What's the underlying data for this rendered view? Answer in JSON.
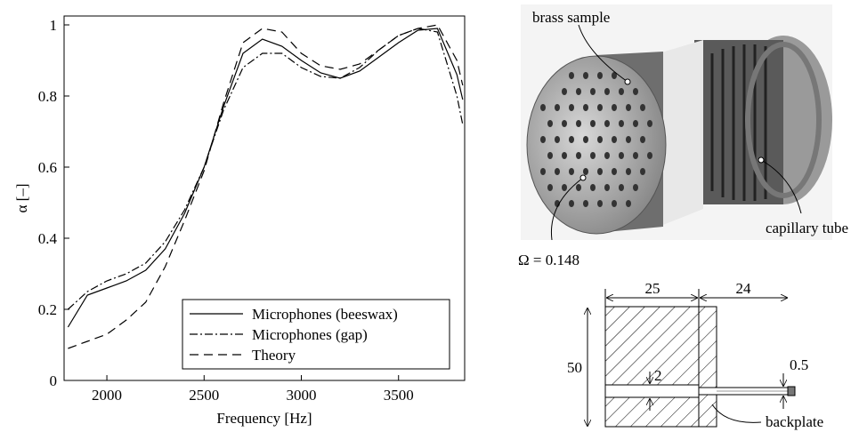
{
  "chart_data": {
    "type": "line",
    "x_label": "Frequency [Hz]",
    "y_label": "α [–]",
    "xlim": [
      1780,
      3840
    ],
    "ylim": [
      0,
      1.025
    ],
    "xticks": [
      2000,
      2500,
      3000,
      3500
    ],
    "yticks": [
      0,
      0.2,
      0.4,
      0.6,
      0.8,
      1
    ],
    "legend_position": "lower right",
    "x": [
      1800,
      1900,
      2000,
      2100,
      2200,
      2300,
      2400,
      2500,
      2600,
      2700,
      2800,
      2900,
      3000,
      3100,
      3200,
      3300,
      3400,
      3500,
      3600,
      3700,
      3800,
      3830
    ],
    "series": [
      {
        "name": "Microphones (beeswax)",
        "color": "#000000",
        "style": "solid",
        "values": [
          0.15,
          0.24,
          0.26,
          0.28,
          0.31,
          0.37,
          0.47,
          0.6,
          0.77,
          0.92,
          0.96,
          0.94,
          0.9,
          0.865,
          0.85,
          0.87,
          0.91,
          0.95,
          0.985,
          0.99,
          0.86,
          0.79
        ]
      },
      {
        "name": "Microphones (gap)",
        "color": "#000000",
        "style": "dashdot",
        "values": [
          0.2,
          0.25,
          0.28,
          0.3,
          0.33,
          0.39,
          0.48,
          0.6,
          0.76,
          0.88,
          0.92,
          0.92,
          0.88,
          0.855,
          0.85,
          0.88,
          0.93,
          0.97,
          0.99,
          0.98,
          0.8,
          0.72
        ]
      },
      {
        "name": "Theory",
        "color": "#000000",
        "style": "dashed",
        "values": [
          0.09,
          0.11,
          0.13,
          0.17,
          0.22,
          0.32,
          0.45,
          0.59,
          0.78,
          0.95,
          0.99,
          0.98,
          0.92,
          0.885,
          0.875,
          0.89,
          0.93,
          0.97,
          0.99,
          1.0,
          0.9,
          0.83
        ]
      }
    ]
  },
  "figure": {
    "photo_labels": {
      "brass": "brass sample",
      "capillary": "capillary tube",
      "porosity": "Ω = 0.148"
    },
    "drawing_labels": {
      "length_front": "25",
      "length_back": "24",
      "diameter": "50",
      "hole": "2",
      "tube": "0.5",
      "backplate": "backplate"
    }
  }
}
